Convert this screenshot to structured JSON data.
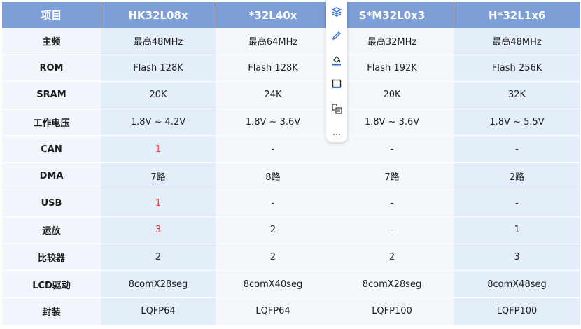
{
  "table": {
    "headers": [
      "项目",
      "HK32L08x",
      "*32L40x",
      "S*M32L0x3",
      "H*32L1x6"
    ],
    "rows": [
      {
        "label": "主频",
        "cells": [
          "最高48MHz",
          "最高64MHz",
          "最高32MHz",
          "最高48MHz"
        ]
      },
      {
        "label": "ROM",
        "cells": [
          "Flash 128K",
          "Flash 128K",
          "Flash 192K",
          "Flash 256K"
        ]
      },
      {
        "label": "SRAM",
        "cells": [
          "20K",
          "24K",
          "20K",
          "32K"
        ]
      },
      {
        "label": "工作电压",
        "cells": [
          "1.8V ~ 4.2V",
          "1.8V ~ 3.6V",
          "1.8V ~ 3.6V",
          "1.8V ~ 5.5V"
        ]
      },
      {
        "label": "CAN",
        "cells": [
          "1",
          "-",
          "-",
          "-"
        ]
      },
      {
        "label": "DMA",
        "cells": [
          "7路",
          "8路",
          "7路",
          "2路"
        ]
      },
      {
        "label": "USB",
        "cells": [
          "1",
          "-",
          "-",
          "-"
        ]
      },
      {
        "label": "运放",
        "cells": [
          "3",
          "2",
          "-",
          "1"
        ]
      },
      {
        "label": "比较器",
        "cells": [
          "2",
          "2",
          "2",
          "3"
        ]
      },
      {
        "label": "LCD驱动",
        "cells": [
          "8comX28seg",
          "8comX40seg",
          "8comX28seg",
          "8comX48seg"
        ]
      },
      {
        "label": "封装",
        "cells": [
          "LQFP64",
          "LQFP64",
          "LQFP100",
          "LQFP100"
        ]
      }
    ]
  },
  "toolbar": {
    "buttons": [
      "layers-icon",
      "pen-icon",
      "fill-icon",
      "frame-icon",
      "convert-icon",
      "more-icon"
    ],
    "more_label": "…"
  },
  "colors": {
    "header_bg": "#7e9ed8",
    "highlight_text": "#e8403a",
    "accent_blue": "#2b6fe0"
  }
}
